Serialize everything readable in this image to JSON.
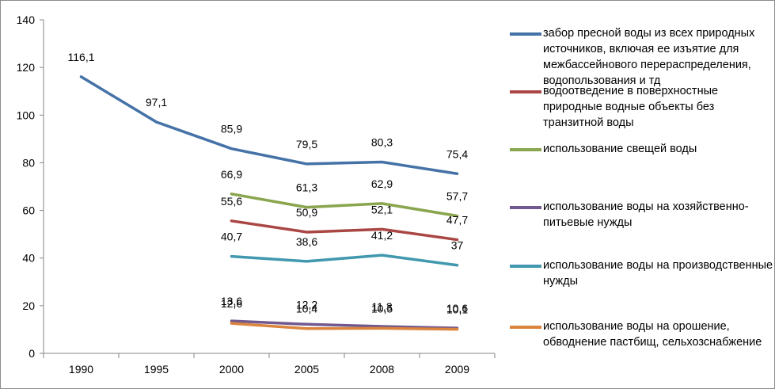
{
  "chart_data": {
    "type": "line",
    "title": "",
    "xlabel": "",
    "ylabel": "",
    "ylim": [
      0,
      140
    ],
    "yticks": [
      "0",
      "20",
      "40",
      "60",
      "80",
      "100",
      "120",
      "140"
    ],
    "categories": [
      "1990",
      "1995",
      "2000",
      "2005",
      "2008",
      "2009"
    ],
    "grid": false,
    "legend_position": "right",
    "series": [
      {
        "name": "забор пресной воды из всех природных источников, включая ее изъятие для межбассейнового перераспределения, водопользования и тд",
        "color": "#4572a7",
        "values": [
          116.1,
          97.1,
          85.9,
          79.5,
          80.3,
          75.4
        ],
        "labels": [
          "116,1",
          "97,1",
          "85,9",
          "79,5",
          "80,3",
          "75,4"
        ]
      },
      {
        "name": "водоотведение в поверхностные природные водные объекты без транзитной воды",
        "color": "#aa4643",
        "values": [
          null,
          null,
          55.6,
          50.9,
          52.1,
          47.7
        ],
        "labels": [
          "",
          "",
          "55,6",
          "50,9",
          "52,1",
          "47,7"
        ]
      },
      {
        "name": "использование свещей воды",
        "color": "#89a54e",
        "values": [
          null,
          null,
          66.9,
          61.3,
          62.9,
          57.7
        ],
        "labels": [
          "",
          "",
          "66,9",
          "61,3",
          "62,9",
          "57,7"
        ]
      },
      {
        "name": "использование воды на хозяйственно-питьевые нужды",
        "color": "#71588f",
        "values": [
          null,
          null,
          13.6,
          12.2,
          11.3,
          10.6
        ],
        "labels": [
          "",
          "",
          "13,6",
          "12,2",
          "11,3",
          "10,6"
        ]
      },
      {
        "name": "использование воды на производственные нужды",
        "color": "#4198af",
        "values": [
          null,
          null,
          40.7,
          38.6,
          41.2,
          37
        ],
        "labels": [
          "",
          "",
          "40,7",
          "38,6",
          "41,2",
          "37"
        ]
      },
      {
        "name": "использование воды на орошение, обводнение пастбищ, сельхозснабжение",
        "color": "#db843d",
        "values": [
          null,
          null,
          12.6,
          10.4,
          10.5,
          10.1
        ],
        "labels": [
          "",
          "",
          "12,6",
          "10,4",
          "10,5",
          "10,1"
        ]
      }
    ]
  }
}
